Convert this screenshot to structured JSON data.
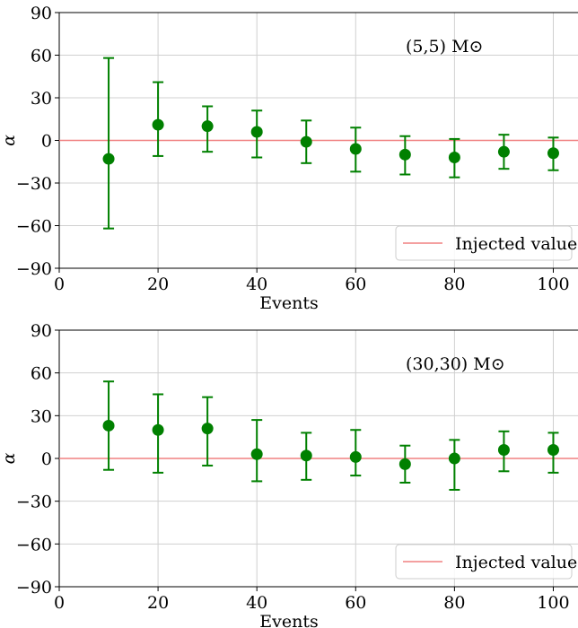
{
  "chart_data": [
    {
      "type": "scatter",
      "title": "",
      "xlabel": "Events",
      "ylabel": "α",
      "annotation": "(5,5) M⊙",
      "xlim": [
        0,
        105
      ],
      "ylim": [
        -90,
        90
      ],
      "xticks": [
        0,
        20,
        40,
        60,
        80,
        100
      ],
      "yticks": [
        -90,
        -60,
        -30,
        0,
        30,
        60,
        90
      ],
      "xtick_labels": [
        "0",
        "20",
        "40",
        "60",
        "80",
        "100"
      ],
      "ytick_labels": [
        "−90",
        "−60",
        "−30",
        "0",
        "30",
        "60",
        "90"
      ],
      "grid": true,
      "legend": {
        "position": "lower-right",
        "entries": [
          "Injected value"
        ]
      },
      "reference_line": {
        "y": 0,
        "label": "Injected value",
        "color": "#f08080"
      },
      "series": [
        {
          "color": "#008000",
          "points": [
            {
              "x": 10,
              "y": -13,
              "lo": -62,
              "hi": 58
            },
            {
              "x": 20,
              "y": 11,
              "lo": -11,
              "hi": 41
            },
            {
              "x": 30,
              "y": 10,
              "lo": -8,
              "hi": 24
            },
            {
              "x": 40,
              "y": 6,
              "lo": -12,
              "hi": 21
            },
            {
              "x": 50,
              "y": -1,
              "lo": -16,
              "hi": 14
            },
            {
              "x": 60,
              "y": -6,
              "lo": -22,
              "hi": 9
            },
            {
              "x": 70,
              "y": -10,
              "lo": -24,
              "hi": 3
            },
            {
              "x": 80,
              "y": -12,
              "lo": -26,
              "hi": 1
            },
            {
              "x": 90,
              "y": -8,
              "lo": -20,
              "hi": 4
            },
            {
              "x": 100,
              "y": -9,
              "lo": -21,
              "hi": 2
            }
          ]
        }
      ]
    },
    {
      "type": "scatter",
      "title": "",
      "xlabel": "Events",
      "ylabel": "α",
      "annotation": "(30,30) M⊙",
      "xlim": [
        0,
        105
      ],
      "ylim": [
        -90,
        90
      ],
      "xticks": [
        0,
        20,
        40,
        60,
        80,
        100
      ],
      "yticks": [
        -90,
        -60,
        -30,
        0,
        30,
        60,
        90
      ],
      "xtick_labels": [
        "0",
        "20",
        "40",
        "60",
        "80",
        "100"
      ],
      "ytick_labels": [
        "−90",
        "−60",
        "−30",
        "0",
        "30",
        "60",
        "90"
      ],
      "grid": true,
      "legend": {
        "position": "lower-right",
        "entries": [
          "Injected value"
        ]
      },
      "reference_line": {
        "y": 0,
        "label": "Injected value",
        "color": "#f08080"
      },
      "series": [
        {
          "color": "#008000",
          "points": [
            {
              "x": 10,
              "y": 23,
              "lo": -8,
              "hi": 54
            },
            {
              "x": 20,
              "y": 20,
              "lo": -10,
              "hi": 45
            },
            {
              "x": 30,
              "y": 21,
              "lo": -5,
              "hi": 43
            },
            {
              "x": 40,
              "y": 3,
              "lo": -16,
              "hi": 27
            },
            {
              "x": 50,
              "y": 2,
              "lo": -15,
              "hi": 18
            },
            {
              "x": 60,
              "y": 1,
              "lo": -12,
              "hi": 20
            },
            {
              "x": 70,
              "y": -4,
              "lo": -17,
              "hi": 9
            },
            {
              "x": 80,
              "y": 0,
              "lo": -22,
              "hi": 13
            },
            {
              "x": 90,
              "y": 6,
              "lo": -9,
              "hi": 19
            },
            {
              "x": 100,
              "y": 6,
              "lo": -10,
              "hi": 18
            }
          ]
        }
      ]
    }
  ]
}
